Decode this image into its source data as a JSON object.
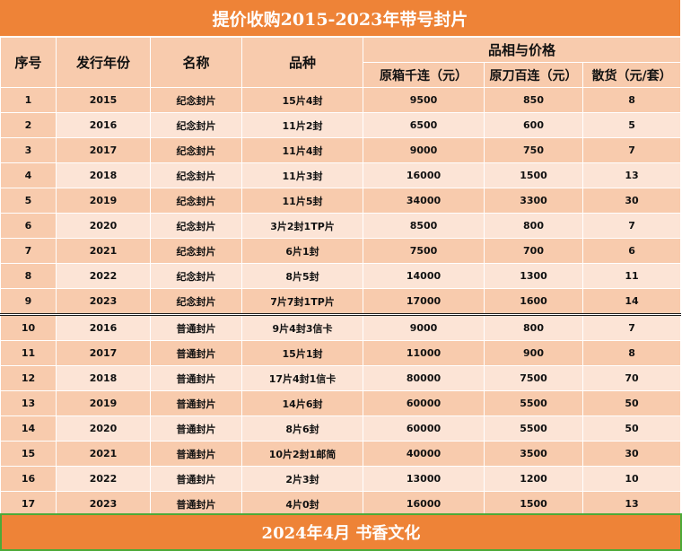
{
  "title": "提价收购2015-2023年带号封片",
  "headers": {
    "seq": "序号",
    "year": "发行年份",
    "name": "名称",
    "variety": "品种",
    "group": "品相与价格",
    "box": "原箱千连（元）",
    "knife": "原刀百连（元）",
    "loose": "散货（元/套）"
  },
  "rows": [
    {
      "seq": "1",
      "year": "2015",
      "name": "纪念封片",
      "variety": "15片4封",
      "box": "9500",
      "knife": "850",
      "loose": "8"
    },
    {
      "seq": "2",
      "year": "2016",
      "name": "纪念封片",
      "variety": "11片2封",
      "box": "6500",
      "knife": "600",
      "loose": "5"
    },
    {
      "seq": "3",
      "year": "2017",
      "name": "纪念封片",
      "variety": "11片4封",
      "box": "9000",
      "knife": "750",
      "loose": "7"
    },
    {
      "seq": "4",
      "year": "2018",
      "name": "纪念封片",
      "variety": "11片3封",
      "box": "16000",
      "knife": "1500",
      "loose": "13"
    },
    {
      "seq": "5",
      "year": "2019",
      "name": "纪念封片",
      "variety": "11片5封",
      "box": "34000",
      "knife": "3300",
      "loose": "30"
    },
    {
      "seq": "6",
      "year": "2020",
      "name": "纪念封片",
      "variety": "3片2封1TP片",
      "box": "8500",
      "knife": "800",
      "loose": "7"
    },
    {
      "seq": "7",
      "year": "2021",
      "name": "纪念封片",
      "variety": "6片1封",
      "box": "7500",
      "knife": "700",
      "loose": "6"
    },
    {
      "seq": "8",
      "year": "2022",
      "name": "纪念封片",
      "variety": "8片5封",
      "box": "14000",
      "knife": "1300",
      "loose": "11"
    },
    {
      "seq": "9",
      "year": "2023",
      "name": "纪念封片",
      "variety": "7片7封1TP片",
      "box": "17000",
      "knife": "1600",
      "loose": "14"
    },
    {
      "seq": "10",
      "year": "2016",
      "name": "普通封片",
      "variety": "9片4封3信卡",
      "box": "9000",
      "knife": "800",
      "loose": "7"
    },
    {
      "seq": "11",
      "year": "2017",
      "name": "普通封片",
      "variety": "15片1封",
      "box": "11000",
      "knife": "900",
      "loose": "8"
    },
    {
      "seq": "12",
      "year": "2018",
      "name": "普通封片",
      "variety": "17片4封1信卡",
      "box": "80000",
      "knife": "7500",
      "loose": "70"
    },
    {
      "seq": "13",
      "year": "2019",
      "name": "普通封片",
      "variety": "14片6封",
      "box": "60000",
      "knife": "5500",
      "loose": "50"
    },
    {
      "seq": "14",
      "year": "2020",
      "name": "普通封片",
      "variety": "8片6封",
      "box": "60000",
      "knife": "5500",
      "loose": "50"
    },
    {
      "seq": "15",
      "year": "2021",
      "name": "普通封片",
      "variety": "10片2封1邮简",
      "box": "40000",
      "knife": "3500",
      "loose": "30"
    },
    {
      "seq": "16",
      "year": "2022",
      "name": "普通封片",
      "variety": "2片3封",
      "box": "13000",
      "knife": "1200",
      "loose": "10"
    },
    {
      "seq": "17",
      "year": "2023",
      "name": "普通封片",
      "variety": "4片0封",
      "box": "16000",
      "knife": "1500",
      "loose": "13"
    }
  ],
  "footer": "2024年4月  书香文化",
  "colors": {
    "title_bg": "#ee8337",
    "header_bg": "#f8cbad",
    "row_dark": "#f8cbad",
    "row_light": "#fce4d6",
    "footer_border": "#4caa38"
  }
}
